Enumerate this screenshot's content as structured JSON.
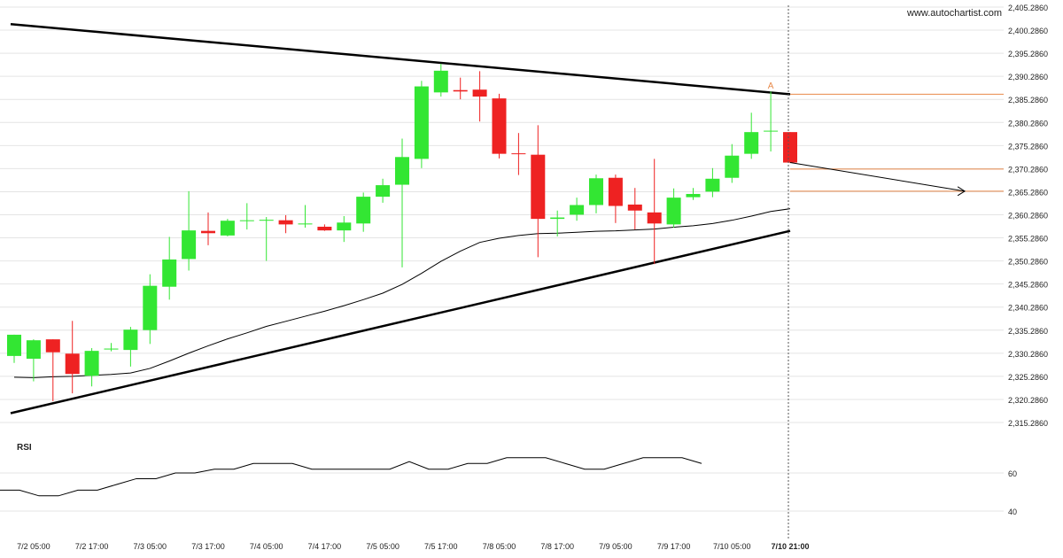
{
  "watermark": "www.autochartist.com",
  "colors": {
    "bull": "#33e633",
    "bear": "#ee2222",
    "trend": "#000000",
    "ma": "#000000",
    "level": "#e8894a",
    "grid": "#e4e4e4",
    "text": "#222222"
  },
  "chart_data": {
    "type": "candlestick",
    "price_axis": {
      "ticks": [
        "2,405.2860",
        "2,400.2860",
        "2,395.2860",
        "2,390.2860",
        "2,385.2860",
        "2,380.2860",
        "2,375.2860",
        "2,370.2860",
        "2,365.2860",
        "2,360.2860",
        "2,355.2860",
        "2,350.2860",
        "2,345.2860",
        "2,340.2860",
        "2,335.2860",
        "2,330.2860",
        "2,325.2860",
        "2,320.2860",
        "2,315.2860"
      ],
      "range": [
        2315.286,
        2405.286
      ]
    },
    "time_axis": {
      "labels": [
        "7/2 05:00",
        "7/2 17:00",
        "7/3 05:00",
        "7/3 17:00",
        "7/4 05:00",
        "7/4 17:00",
        "7/5 05:00",
        "7/5 17:00",
        "7/8 05:00",
        "7/8 17:00",
        "7/9 05:00",
        "7/9 17:00",
        "7/10 05:00",
        "7/10 21:00"
      ],
      "label_index": [
        1,
        4,
        7,
        10,
        13,
        16,
        19,
        22,
        25,
        28,
        31,
        34,
        37,
        40
      ],
      "bold_label": "7/10 21:00"
    },
    "candles": [
      {
        "o": 2329.7,
        "h": 2334.3,
        "l": 2328.2,
        "c": 2334.3
      },
      {
        "o": 2329.1,
        "h": 2333.3,
        "l": 2324.2,
        "c": 2333.1
      },
      {
        "o": 2333.3,
        "h": 2333.3,
        "l": 2319.9,
        "c": 2330.5
      },
      {
        "o": 2330.2,
        "h": 2337.3,
        "l": 2321.6,
        "c": 2325.8
      },
      {
        "o": 2325.4,
        "h": 2331.4,
        "l": 2323.1,
        "c": 2330.8
      },
      {
        "o": 2331.1,
        "h": 2332.5,
        "l": 2330.7,
        "c": 2331.3
      },
      {
        "o": 2331.0,
        "h": 2336.0,
        "l": 2327.4,
        "c": 2335.4
      },
      {
        "o": 2335.3,
        "h": 2347.4,
        "l": 2332.3,
        "c": 2344.9
      },
      {
        "o": 2344.7,
        "h": 2355.5,
        "l": 2341.9,
        "c": 2350.6
      },
      {
        "o": 2350.7,
        "h": 2365.4,
        "l": 2348.2,
        "c": 2356.9
      },
      {
        "o": 2356.8,
        "h": 2360.8,
        "l": 2353.7,
        "c": 2356.3
      },
      {
        "o": 2355.8,
        "h": 2359.4,
        "l": 2355.6,
        "c": 2359.0
      },
      {
        "o": 2359.0,
        "h": 2362.8,
        "l": 2357.1,
        "c": 2359.1
      },
      {
        "o": 2359.0,
        "h": 2359.8,
        "l": 2350.3,
        "c": 2359.2
      },
      {
        "o": 2359.1,
        "h": 2360.2,
        "l": 2356.3,
        "c": 2358.2
      },
      {
        "o": 2358.2,
        "h": 2362.4,
        "l": 2357.5,
        "c": 2358.4
      },
      {
        "o": 2357.7,
        "h": 2358.2,
        "l": 2356.8,
        "c": 2356.9
      },
      {
        "o": 2356.9,
        "h": 2360.0,
        "l": 2354.4,
        "c": 2358.6
      },
      {
        "o": 2358.4,
        "h": 2365.1,
        "l": 2356.6,
        "c": 2364.2
      },
      {
        "o": 2364.2,
        "h": 2368.1,
        "l": 2362.9,
        "c": 2366.7
      },
      {
        "o": 2366.8,
        "h": 2376.8,
        "l": 2348.9,
        "c": 2372.8
      },
      {
        "o": 2372.4,
        "h": 2389.3,
        "l": 2370.4,
        "c": 2388.1
      },
      {
        "o": 2386.8,
        "h": 2393.0,
        "l": 2385.9,
        "c": 2391.5
      },
      {
        "o": 2387.3,
        "h": 2390.0,
        "l": 2385.3,
        "c": 2387.0
      },
      {
        "o": 2387.4,
        "h": 2391.4,
        "l": 2380.5,
        "c": 2385.9
      },
      {
        "o": 2385.5,
        "h": 2386.5,
        "l": 2372.5,
        "c": 2373.5
      },
      {
        "o": 2373.6,
        "h": 2378.0,
        "l": 2368.9,
        "c": 2373.5
      },
      {
        "o": 2373.3,
        "h": 2379.7,
        "l": 2351.1,
        "c": 2359.4
      },
      {
        "o": 2359.4,
        "h": 2361.2,
        "l": 2355.6,
        "c": 2359.7
      },
      {
        "o": 2360.3,
        "h": 2364.0,
        "l": 2359.0,
        "c": 2362.4
      },
      {
        "o": 2362.4,
        "h": 2369.0,
        "l": 2360.6,
        "c": 2368.2
      },
      {
        "o": 2368.3,
        "h": 2369.0,
        "l": 2358.5,
        "c": 2362.2
      },
      {
        "o": 2362.5,
        "h": 2366.1,
        "l": 2357.1,
        "c": 2361.2
      },
      {
        "o": 2360.8,
        "h": 2372.4,
        "l": 2349.6,
        "c": 2358.4
      },
      {
        "o": 2358.2,
        "h": 2366.0,
        "l": 2357.5,
        "c": 2364.0
      },
      {
        "o": 2364.1,
        "h": 2366.1,
        "l": 2363.5,
        "c": 2364.8
      },
      {
        "o": 2365.3,
        "h": 2370.4,
        "l": 2364.1,
        "c": 2368.1
      },
      {
        "o": 2368.3,
        "h": 2375.6,
        "l": 2367.2,
        "c": 2373.1
      },
      {
        "o": 2373.5,
        "h": 2382.4,
        "l": 2372.4,
        "c": 2378.2
      },
      {
        "o": 2378.4,
        "h": 2387.0,
        "l": 2374.0,
        "c": 2378.5
      },
      {
        "o": 2378.2,
        "h": 2378.2,
        "l": 2371.5,
        "c": 2371.6
      }
    ],
    "moving_average": [
      2325.1,
      2325.0,
      2325.2,
      2325.3,
      2325.5,
      2325.7,
      2326.0,
      2327.0,
      2328.6,
      2330.3,
      2331.9,
      2333.4,
      2334.7,
      2336.1,
      2337.2,
      2338.3,
      2339.4,
      2340.6,
      2341.9,
      2343.3,
      2345.2,
      2347.6,
      2350.2,
      2352.4,
      2354.3,
      2355.2,
      2355.8,
      2356.2,
      2356.3,
      2356.5,
      2356.7,
      2356.8,
      2357.0,
      2357.2,
      2357.6,
      2357.9,
      2358.4,
      2359.1,
      2360.0,
      2361.0,
      2361.6
    ],
    "trendlines": [
      {
        "name": "resistance",
        "from": {
          "i": 0,
          "price": 2401.6
        },
        "to": {
          "i": 40,
          "price": 2386.4
        }
      },
      {
        "name": "support",
        "from": {
          "i": 0,
          "price": 2317.3
        },
        "to": {
          "i": 40,
          "price": 2356.8
        }
      }
    ],
    "levels": [
      {
        "name": "breakout-level",
        "price": 2386.4
      },
      {
        "name": "current-level",
        "price": 2370.2
      },
      {
        "name": "target-level",
        "price": 2365.4
      }
    ],
    "forecast_arrow": {
      "from": {
        "i": 40,
        "price": 2371.6
      },
      "to": {
        "i": 49,
        "price": 2365.4
      }
    },
    "marker": {
      "label": "A",
      "i": 39,
      "price": 2387.6
    },
    "rsi": {
      "title": "RSI",
      "ticks": [
        "60",
        "40"
      ],
      "tick_values": [
        60,
        40
      ],
      "values": [
        51,
        51,
        48,
        48,
        51,
        51,
        54,
        57,
        57,
        60,
        60,
        62,
        62,
        65,
        65,
        65,
        62,
        62,
        62,
        62,
        62,
        66,
        62,
        62,
        65,
        65,
        68,
        68,
        68,
        65,
        62,
        62,
        65,
        68,
        68,
        68,
        65
      ]
    }
  }
}
